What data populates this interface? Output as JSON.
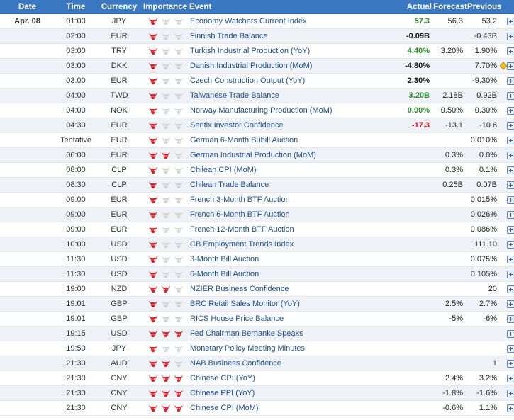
{
  "header": {
    "date": "Date",
    "time": "Time",
    "currency": "Currency",
    "importance": "Importance",
    "event": "Event",
    "actual": "Actual",
    "forecast": "Forecast",
    "previous": "Previous"
  },
  "colors": {
    "header_bg": "#3a78c2",
    "positive": "#2a8a2a",
    "negative": "#e01010",
    "bull_red": "#d8262e",
    "bull_gray": "#d4d4d4"
  },
  "icons": {
    "importance": "bull-icon",
    "expand": "expand-plus-icon",
    "revision": "revision-diamond-icon"
  },
  "rows": [
    {
      "date": "Apr. 08",
      "time": "01:00",
      "currency": "JPY",
      "importance": 1,
      "event": "Economy Watchers Current Index",
      "actual": "57.3",
      "actual_tone": "pos",
      "forecast": "56.3",
      "previous": "53.2",
      "flag": false
    },
    {
      "date": "",
      "time": "02:00",
      "currency": "EUR",
      "importance": 1,
      "event": "Finnish Trade Balance",
      "actual": "-0.09B",
      "actual_tone": "neu",
      "forecast": "",
      "previous": "-0.43B",
      "flag": false
    },
    {
      "date": "",
      "time": "03:00",
      "currency": "TRY",
      "importance": 1,
      "event": "Turkish Industrial Production (YoY)",
      "actual": "4.40%",
      "actual_tone": "pos",
      "forecast": "3.20%",
      "previous": "1.90%",
      "flag": false
    },
    {
      "date": "",
      "time": "03:00",
      "currency": "DKK",
      "importance": 1,
      "event": "Danish Industrial Production (MoM)",
      "actual": "-4.80%",
      "actual_tone": "neu",
      "forecast": "",
      "previous": "7.70%",
      "flag": true
    },
    {
      "date": "",
      "time": "03:00",
      "currency": "EUR",
      "importance": 1,
      "event": "Czech Construction Output (YoY)",
      "actual": "2.30%",
      "actual_tone": "neu",
      "forecast": "",
      "previous": "-9.30%",
      "flag": false
    },
    {
      "date": "",
      "time": "04:00",
      "currency": "TWD",
      "importance": 1,
      "event": "Taiwanese Trade Balance",
      "actual": "3.20B",
      "actual_tone": "pos",
      "forecast": "2.18B",
      "previous": "0.92B",
      "flag": false
    },
    {
      "date": "",
      "time": "04:00",
      "currency": "NOK",
      "importance": 1,
      "event": "Norway Manufacturing Production (MoM)",
      "actual": "0.90%",
      "actual_tone": "pos",
      "forecast": "0.50%",
      "previous": "0.30%",
      "flag": false
    },
    {
      "date": "",
      "time": "04:30",
      "currency": "EUR",
      "importance": 1,
      "event": "Sentix Investor Confidence",
      "actual": "-17.3",
      "actual_tone": "neg",
      "forecast": "-13.1",
      "previous": "-10.6",
      "flag": false
    },
    {
      "date": "",
      "time": "Tentative",
      "currency": "EUR",
      "importance": 1,
      "event": "German 6-Month Bubill Auction",
      "actual": "",
      "actual_tone": "neu",
      "forecast": "",
      "previous": "0.010%",
      "flag": false
    },
    {
      "date": "",
      "time": "06:00",
      "currency": "EUR",
      "importance": 2,
      "event": "German Industrial Production (MoM)",
      "actual": "",
      "actual_tone": "neu",
      "forecast": "0.3%",
      "previous": "0.0%",
      "flag": false
    },
    {
      "date": "",
      "time": "08:00",
      "currency": "CLP",
      "importance": 1,
      "event": "Chilean CPI (MoM)",
      "actual": "",
      "actual_tone": "neu",
      "forecast": "0.3%",
      "previous": "0.1%",
      "flag": false
    },
    {
      "date": "",
      "time": "08:30",
      "currency": "CLP",
      "importance": 1,
      "event": "Chilean Trade Balance",
      "actual": "",
      "actual_tone": "neu",
      "forecast": "0.25B",
      "previous": "0.07B",
      "flag": false
    },
    {
      "date": "",
      "time": "09:00",
      "currency": "EUR",
      "importance": 1,
      "event": "French 3-Month BTF Auction",
      "actual": "",
      "actual_tone": "neu",
      "forecast": "",
      "previous": "0.015%",
      "flag": false
    },
    {
      "date": "",
      "time": "09:00",
      "currency": "EUR",
      "importance": 1,
      "event": "French 6-Month BTF Auction",
      "actual": "",
      "actual_tone": "neu",
      "forecast": "",
      "previous": "0.026%",
      "flag": false
    },
    {
      "date": "",
      "time": "09:00",
      "currency": "EUR",
      "importance": 1,
      "event": "French 12-Month BTF Auction",
      "actual": "",
      "actual_tone": "neu",
      "forecast": "",
      "previous": "0.086%",
      "flag": false
    },
    {
      "date": "",
      "time": "10:00",
      "currency": "USD",
      "importance": 1,
      "event": "CB Employment Trends Index",
      "actual": "",
      "actual_tone": "neu",
      "forecast": "",
      "previous": "111.10",
      "flag": false
    },
    {
      "date": "",
      "time": "11:30",
      "currency": "USD",
      "importance": 1,
      "event": "3-Month Bill Auction",
      "actual": "",
      "actual_tone": "neu",
      "forecast": "",
      "previous": "0.075%",
      "flag": false
    },
    {
      "date": "",
      "time": "11:30",
      "currency": "USD",
      "importance": 1,
      "event": "6-Month Bill Auction",
      "actual": "",
      "actual_tone": "neu",
      "forecast": "",
      "previous": "0.105%",
      "flag": false
    },
    {
      "date": "",
      "time": "19:00",
      "currency": "NZD",
      "importance": 2,
      "event": "NZIER Business Confidence",
      "actual": "",
      "actual_tone": "neu",
      "forecast": "",
      "previous": "20",
      "flag": false
    },
    {
      "date": "",
      "time": "19:01",
      "currency": "GBP",
      "importance": 1,
      "event": "BRC Retail Sales Monitor (YoY)",
      "actual": "",
      "actual_tone": "neu",
      "forecast": "2.5%",
      "previous": "2.7%",
      "flag": false
    },
    {
      "date": "",
      "time": "19:01",
      "currency": "GBP",
      "importance": 1,
      "event": "RICS House Price Balance",
      "actual": "",
      "actual_tone": "neu",
      "forecast": "-5%",
      "previous": "-6%",
      "flag": false
    },
    {
      "date": "",
      "time": "19:15",
      "currency": "USD",
      "importance": 3,
      "event": "Fed Chairman Bernanke Speaks",
      "actual": "",
      "actual_tone": "neu",
      "forecast": "",
      "previous": "",
      "flag": false
    },
    {
      "date": "",
      "time": "19:50",
      "currency": "JPY",
      "importance": 1,
      "event": "Monetary Policy Meeting Minutes",
      "actual": "",
      "actual_tone": "neu",
      "forecast": "",
      "previous": "",
      "flag": false
    },
    {
      "date": "",
      "time": "21:30",
      "currency": "AUD",
      "importance": 2,
      "event": "NAB Business Confidence",
      "actual": "",
      "actual_tone": "neu",
      "forecast": "",
      "previous": "1",
      "flag": false
    },
    {
      "date": "",
      "time": "21:30",
      "currency": "CNY",
      "importance": 3,
      "event": "Chinese CPI (YoY)",
      "actual": "",
      "actual_tone": "neu",
      "forecast": "2.4%",
      "previous": "3.2%",
      "flag": false
    },
    {
      "date": "",
      "time": "21:30",
      "currency": "CNY",
      "importance": 3,
      "event": "Chinese PPI (YoY)",
      "actual": "",
      "actual_tone": "neu",
      "forecast": "-1.8%",
      "previous": "-1.6%",
      "flag": false
    },
    {
      "date": "",
      "time": "21:30",
      "currency": "CNY",
      "importance": 3,
      "event": "Chinese CPI (MoM)",
      "actual": "",
      "actual_tone": "neu",
      "forecast": "-0.6%",
      "previous": "1.1%",
      "flag": false
    }
  ]
}
